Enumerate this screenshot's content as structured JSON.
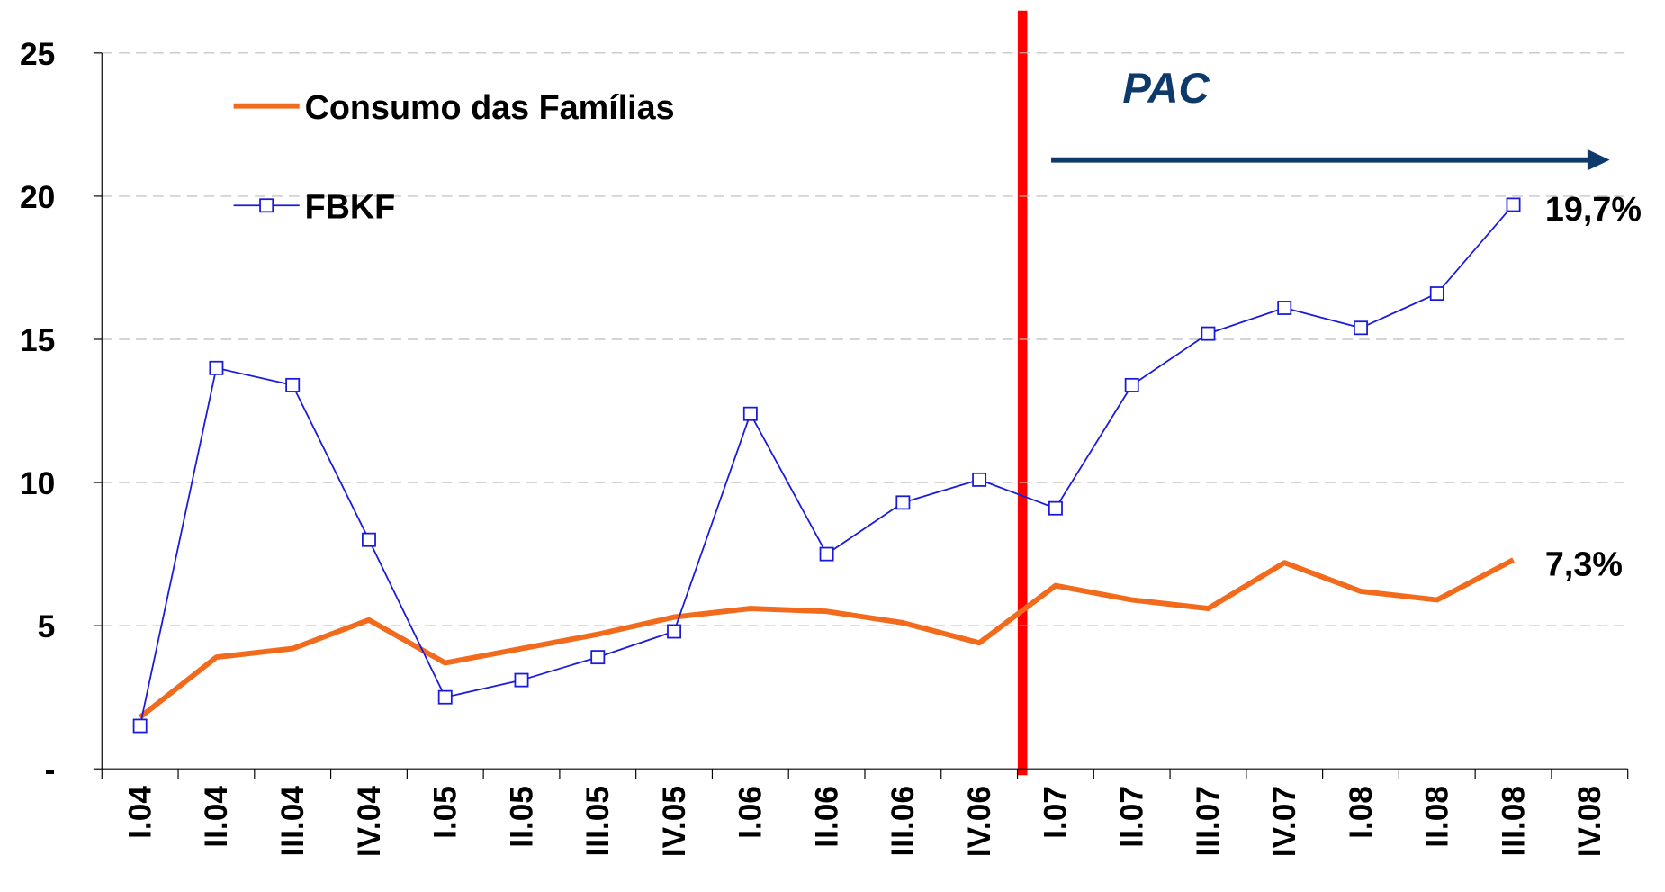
{
  "chart_data": {
    "type": "line",
    "categories": [
      "I.04",
      "II.04",
      "III.04",
      "IV.04",
      "I.05",
      "II.05",
      "III.05",
      "IV.05",
      "I.06",
      "II.06",
      "III.06",
      "IV.06",
      "I.07",
      "II.07",
      "III.07",
      "IV.07",
      "I.08",
      "II.08",
      "III.08",
      "IV.08"
    ],
    "series": [
      {
        "name": "Consumo das Famílias",
        "color": "#f26b1d",
        "marker": "none",
        "values": [
          1.8,
          3.9,
          4.2,
          5.2,
          3.7,
          4.2,
          4.7,
          5.3,
          5.6,
          5.5,
          5.1,
          4.4,
          6.4,
          5.9,
          5.6,
          7.2,
          6.2,
          5.9,
          7.3,
          null
        ],
        "value_labels": [
          null,
          null,
          null,
          null,
          null,
          null,
          null,
          null,
          null,
          null,
          null,
          null,
          null,
          null,
          null,
          null,
          null,
          null,
          "7,3%",
          null
        ]
      },
      {
        "name": "FBKF",
        "color": "#1a1adb",
        "marker": "square",
        "values": [
          1.5,
          14.0,
          13.4,
          8.0,
          2.5,
          3.1,
          3.9,
          4.8,
          12.4,
          7.5,
          9.3,
          10.1,
          9.1,
          13.4,
          15.2,
          16.1,
          15.4,
          16.6,
          19.7,
          null
        ],
        "value_labels": [
          null,
          null,
          null,
          null,
          null,
          null,
          null,
          null,
          null,
          null,
          null,
          null,
          null,
          null,
          null,
          null,
          null,
          null,
          "19,7%",
          null
        ]
      }
    ],
    "ylim": [
      0,
      25
    ],
    "yticks": [
      {
        "value": 0,
        "label": "-"
      },
      5,
      10,
      15,
      20,
      25
    ],
    "grid": true,
    "annotation": "PAC"
  }
}
